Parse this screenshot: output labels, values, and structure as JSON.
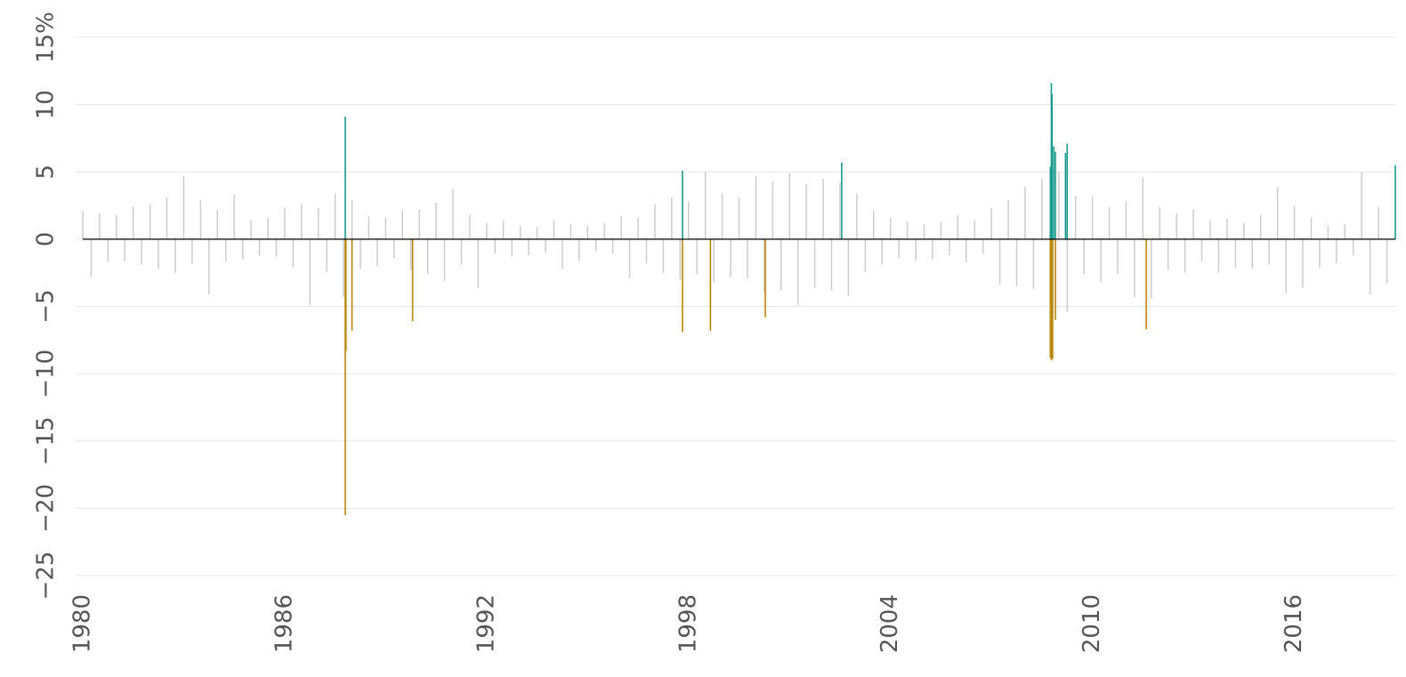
{
  "chart_data": {
    "type": "bar",
    "xlim": [
      1980,
      2019
    ],
    "xticks": [
      1980,
      1986,
      1992,
      1998,
      2004,
      2010,
      2016
    ],
    "ylim": [
      -25,
      15
    ],
    "yticks": [
      {
        "value": -25,
        "label": "−25"
      },
      {
        "value": -20,
        "label": "−20"
      },
      {
        "value": -15,
        "label": "−15"
      },
      {
        "value": -10,
        "label": "−10"
      },
      {
        "value": -5,
        "label": "−5"
      },
      0,
      5,
      10,
      {
        "value": 15,
        "label": "15%"
      }
    ],
    "grid": true,
    "series": [
      {
        "color": "#cccccc",
        "x": [
          1980,
          1980.25,
          1980.5,
          1980.75,
          1981,
          1981.25,
          1981.5,
          1981.75,
          1982,
          1982.25,
          1982.5,
          1982.75,
          1983,
          1983.25,
          1983.5,
          1983.75,
          1984,
          1984.25,
          1984.5,
          1984.75,
          1985,
          1985.25,
          1985.5,
          1985.75,
          1986,
          1986.25,
          1986.5,
          1986.75,
          1987,
          1987.25,
          1987.5,
          1987.75,
          1988,
          1988.25,
          1988.5,
          1988.75,
          1989,
          1989.25,
          1989.5,
          1989.75,
          1990,
          1990.25,
          1990.5,
          1990.75,
          1991,
          1991.25,
          1991.5,
          1991.75,
          1992,
          1992.25,
          1992.5,
          1992.75,
          1993,
          1993.25,
          1993.5,
          1993.75,
          1994,
          1994.25,
          1994.5,
          1994.75,
          1995,
          1995.25,
          1995.5,
          1995.75,
          1996,
          1996.25,
          1996.5,
          1996.75,
          1997,
          1997.25,
          1997.5,
          1997.75,
          1998,
          1998.25,
          1998.5,
          1998.75,
          1999,
          1999.25,
          1999.5,
          1999.75,
          2000,
          2000.25,
          2000.5,
          2000.75,
          2001,
          2001.25,
          2001.5,
          2001.75,
          2002,
          2002.25,
          2002.5,
          2002.75,
          2003,
          2003.25,
          2003.5,
          2003.75,
          2004,
          2004.25,
          2004.5,
          2004.75,
          2005,
          2005.25,
          2005.5,
          2005.75,
          2006,
          2006.25,
          2006.5,
          2006.75,
          2007,
          2007.25,
          2007.5,
          2007.75,
          2008,
          2008.25,
          2008.5,
          2008.75,
          2009,
          2009.25,
          2009.5,
          2009.75,
          2010,
          2010.25,
          2010.5,
          2010.75,
          2011,
          2011.25,
          2011.5,
          2011.75,
          2012,
          2012.25,
          2012.5,
          2012.75,
          2013,
          2013.25,
          2013.5,
          2013.75,
          2014,
          2014.25,
          2014.5,
          2014.75,
          2015,
          2015.25,
          2015.5,
          2015.75,
          2016,
          2016.25,
          2016.5,
          2016.75,
          2017,
          2017.25,
          2017.5,
          2017.75,
          2018,
          2018.25,
          2018.5,
          2018.75
        ],
        "values": [
          2.1,
          -2.8,
          1.9,
          -1.7,
          1.8,
          -1.6,
          2.4,
          -1.9,
          2.6,
          -2.2,
          3.1,
          -2.5,
          4.7,
          -1.8,
          2.9,
          -4.1,
          2.2,
          -1.6,
          3.3,
          -1.5,
          1.4,
          -1.2,
          1.6,
          -1.3,
          2.3,
          -2.1,
          2.6,
          -4.9,
          2.3,
          -2.4,
          3.4,
          -4.3,
          2.9,
          -2.2,
          1.7,
          -2.0,
          1.6,
          -1.4,
          2.1,
          -2.3,
          2.2,
          -2.6,
          2.7,
          -3.1,
          3.7,
          -1.9,
          1.8,
          -3.6,
          1.2,
          -1.1,
          1.4,
          -1.3,
          1.0,
          -1.2,
          0.9,
          -1.0,
          1.4,
          -2.2,
          1.1,
          -1.6,
          1.0,
          -0.9,
          1.2,
          -1.1,
          1.7,
          -2.9,
          1.6,
          -1.8,
          2.6,
          -2.5,
          3.1,
          -3.0,
          2.8,
          -2.6,
          5.0,
          -3.2,
          3.4,
          -2.8,
          3.1,
          -2.9,
          4.7,
          -3.9,
          4.3,
          -3.8,
          4.9,
          -4.9,
          4.1,
          -3.6,
          4.5,
          -3.8,
          4.2,
          -4.2,
          3.4,
          -2.4,
          2.1,
          -1.9,
          1.6,
          -1.4,
          1.3,
          -1.6,
          1.1,
          -1.5,
          1.3,
          -1.2,
          1.8,
          -1.7,
          1.4,
          -1.1,
          2.3,
          -3.4,
          2.9,
          -3.5,
          3.9,
          -3.7,
          4.5,
          -5.3,
          5.0,
          -5.4,
          3.2,
          -2.6,
          3.2,
          -3.2,
          2.4,
          -2.6,
          2.8,
          -4.3,
          4.6,
          -4.4,
          2.4,
          -2.3,
          1.9,
          -2.5,
          2.2,
          -1.6,
          1.4,
          -2.5,
          1.5,
          -2.1,
          1.2,
          -2.2,
          1.8,
          -1.9,
          3.9,
          -4.0,
          2.5,
          -3.6,
          1.6,
          -2.1,
          1.0,
          -1.8,
          1.1,
          -1.2,
          5.0,
          -4.1,
          2.4,
          -3.3
        ]
      },
      {
        "color": "#1a9a8c",
        "x": [
          1987.8,
          1997.82,
          2002.55,
          2008.75,
          2008.78,
          2008.8,
          2008.85,
          2008.9,
          2009.2,
          2009.25,
          2019.0
        ],
        "values": [
          9.1,
          5.1,
          5.7,
          5.4,
          11.6,
          10.8,
          6.9,
          6.5,
          6.4,
          7.1,
          5.5
        ]
      },
      {
        "color": "#b8860b",
        "x": [
          1987.8,
          1987.82,
          1988.0,
          1989.8,
          1997.82,
          1998.65,
          2000.28,
          2008.75,
          2008.78,
          2008.82,
          2008.9,
          2011.6
        ],
        "values": [
          -20.5,
          -8.3,
          -6.8,
          -6.1,
          -6.9,
          -6.8,
          -5.8,
          -8.8,
          -9.0,
          -8.9,
          -6.0,
          -6.7
        ]
      }
    ]
  }
}
